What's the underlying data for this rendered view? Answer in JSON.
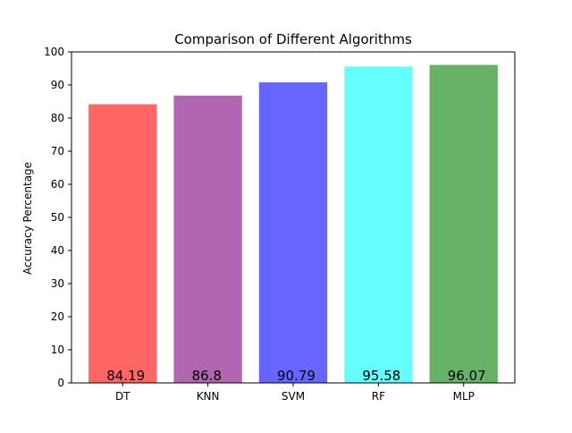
{
  "chart_data": {
    "type": "bar",
    "title": "Comparison of Different Algorithms",
    "xlabel": "",
    "ylabel": "Accuracy Percentage",
    "categories": [
      "DT",
      "KNN",
      "SVM",
      "RF",
      "MLP"
    ],
    "values": [
      84.19,
      86.8,
      90.79,
      95.58,
      96.07
    ],
    "value_labels": [
      "84.19",
      "86.8",
      "90.79",
      "95.58",
      "96.07"
    ],
    "colors": [
      "#ff6666",
      "#b266b2",
      "#6666ff",
      "#66ffff",
      "#66b266"
    ],
    "ylim": [
      0,
      100
    ],
    "yticks": [
      0,
      10,
      20,
      30,
      40,
      50,
      60,
      70,
      80,
      90,
      100
    ],
    "grid": false,
    "legend": "none"
  }
}
